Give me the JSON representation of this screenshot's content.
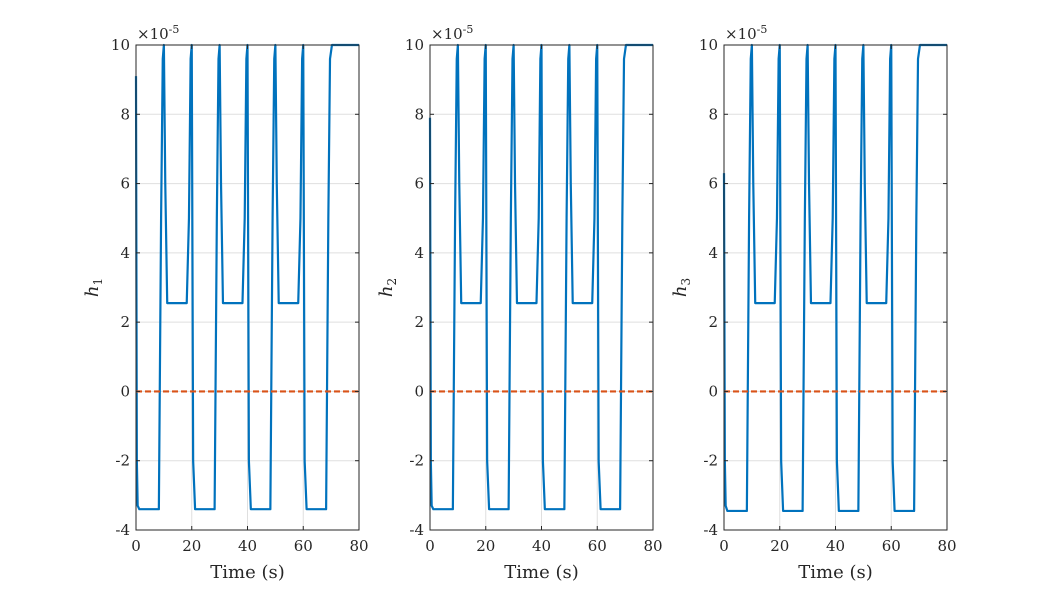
{
  "chart_data": [
    {
      "type": "line",
      "ylabel": "h",
      "ylabel_subscript": "1",
      "xlabel": "Time (s)",
      "exponent_label": "×10",
      "exponent_power": "-5",
      "xlim": [
        0,
        80
      ],
      "ylim": [
        -4,
        10
      ],
      "xticks": [
        "0",
        "20",
        "40",
        "60",
        "80"
      ],
      "yticks": [
        "-4",
        "-2",
        "0",
        "2",
        "4",
        "6",
        "8",
        "10"
      ],
      "grid": true,
      "series": [
        {
          "color": "#0072BD",
          "style": "solid",
          "x": [
            0,
            0.3,
            0.6,
            1.2,
            8.2,
            9.0,
            9.6,
            10.0,
            10.5,
            11.2,
            18.2,
            19.0,
            19.6,
            20.0,
            20.5,
            21.2,
            28.2,
            29.0,
            29.6,
            30.0,
            30.5,
            31.2,
            38.2,
            39.0,
            39.6,
            40.0,
            40.5,
            41.2,
            48.2,
            49.0,
            49.6,
            50.0,
            50.5,
            51.2,
            58.2,
            59.0,
            59.6,
            60.0,
            60.5,
            61.2,
            68.2,
            69.0,
            69.6,
            70.3,
            80
          ],
          "y": [
            9.1,
            -2.0,
            -3.3,
            -3.4,
            -3.4,
            5.0,
            9.6,
            10.0,
            6.0,
            2.55,
            2.55,
            5.0,
            9.6,
            10.0,
            -2.0,
            -3.4,
            -3.4,
            5.0,
            9.6,
            10.0,
            6.0,
            2.55,
            2.55,
            5.0,
            9.6,
            10.0,
            -2.0,
            -3.4,
            -3.4,
            5.0,
            9.6,
            10.0,
            6.0,
            2.55,
            2.55,
            5.0,
            9.6,
            10.0,
            -2.0,
            -3.4,
            -3.4,
            5.0,
            9.6,
            10.0,
            10.0
          ]
        },
        {
          "color": "#D95319",
          "style": "dashed",
          "x": [
            0,
            80
          ],
          "y": [
            0,
            0
          ]
        }
      ]
    },
    {
      "type": "line",
      "ylabel": "h",
      "ylabel_subscript": "2",
      "xlabel": "Time (s)",
      "exponent_label": "×10",
      "exponent_power": "-5",
      "xlim": [
        0,
        80
      ],
      "ylim": [
        -4,
        10
      ],
      "xticks": [
        "0",
        "20",
        "40",
        "60",
        "80"
      ],
      "yticks": [
        "-4",
        "-2",
        "0",
        "2",
        "4",
        "6",
        "8",
        "10"
      ],
      "grid": true,
      "series": [
        {
          "color": "#0072BD",
          "style": "solid",
          "x": [
            0,
            0.3,
            0.6,
            1.2,
            8.2,
            9.0,
            9.6,
            10.0,
            10.5,
            11.2,
            18.2,
            19.0,
            19.6,
            20.0,
            20.5,
            21.2,
            28.2,
            29.0,
            29.6,
            30.0,
            30.5,
            31.2,
            38.2,
            39.0,
            39.6,
            40.0,
            40.5,
            41.2,
            48.2,
            49.0,
            49.6,
            50.0,
            50.5,
            51.2,
            58.2,
            59.0,
            59.6,
            60.0,
            60.5,
            61.2,
            68.2,
            69.0,
            69.6,
            70.3,
            80
          ],
          "y": [
            7.9,
            -2.0,
            -3.3,
            -3.4,
            -3.4,
            5.0,
            9.6,
            10.0,
            6.0,
            2.55,
            2.55,
            5.0,
            9.6,
            10.0,
            -2.0,
            -3.4,
            -3.4,
            5.0,
            9.6,
            10.0,
            6.0,
            2.55,
            2.55,
            5.0,
            9.6,
            10.0,
            -2.0,
            -3.4,
            -3.4,
            5.0,
            9.6,
            10.0,
            6.0,
            2.55,
            2.55,
            5.0,
            9.6,
            10.0,
            -2.0,
            -3.4,
            -3.4,
            5.0,
            9.6,
            10.0,
            10.0
          ]
        },
        {
          "color": "#D95319",
          "style": "dashed",
          "x": [
            0,
            80
          ],
          "y": [
            0,
            0
          ]
        }
      ]
    },
    {
      "type": "line",
      "ylabel": "h",
      "ylabel_subscript": "3",
      "xlabel": "Time (s)",
      "exponent_label": "×10",
      "exponent_power": "-5",
      "xlim": [
        0,
        80
      ],
      "ylim": [
        -4,
        10
      ],
      "xticks": [
        "0",
        "20",
        "40",
        "60",
        "80"
      ],
      "yticks": [
        "-4",
        "-2",
        "0",
        "2",
        "4",
        "6",
        "8",
        "10"
      ],
      "grid": true,
      "series": [
        {
          "color": "#0072BD",
          "style": "solid",
          "x": [
            0,
            0.3,
            0.6,
            1.2,
            8.2,
            9.0,
            9.6,
            10.0,
            10.5,
            11.2,
            18.2,
            19.0,
            19.6,
            20.0,
            20.5,
            21.2,
            28.2,
            29.0,
            29.6,
            30.0,
            30.5,
            31.2,
            38.2,
            39.0,
            39.6,
            40.0,
            40.5,
            41.2,
            48.2,
            49.0,
            49.6,
            50.0,
            50.5,
            51.2,
            58.2,
            59.0,
            59.6,
            60.0,
            60.5,
            61.2,
            68.2,
            69.0,
            69.6,
            70.3,
            80
          ],
          "y": [
            6.3,
            -2.0,
            -3.3,
            -3.45,
            -3.45,
            5.0,
            9.6,
            10.0,
            6.0,
            2.55,
            2.55,
            5.0,
            9.6,
            10.0,
            -2.0,
            -3.45,
            -3.45,
            5.0,
            9.6,
            10.0,
            6.0,
            2.55,
            2.55,
            5.0,
            9.6,
            10.0,
            -2.0,
            -3.45,
            -3.45,
            5.0,
            9.6,
            10.0,
            6.0,
            2.55,
            2.55,
            5.0,
            9.6,
            10.0,
            -2.0,
            -3.45,
            -3.45,
            5.0,
            9.6,
            10.0,
            10.0
          ]
        },
        {
          "color": "#D95319",
          "style": "dashed",
          "x": [
            0,
            80
          ],
          "y": [
            0,
            0
          ]
        }
      ]
    }
  ]
}
